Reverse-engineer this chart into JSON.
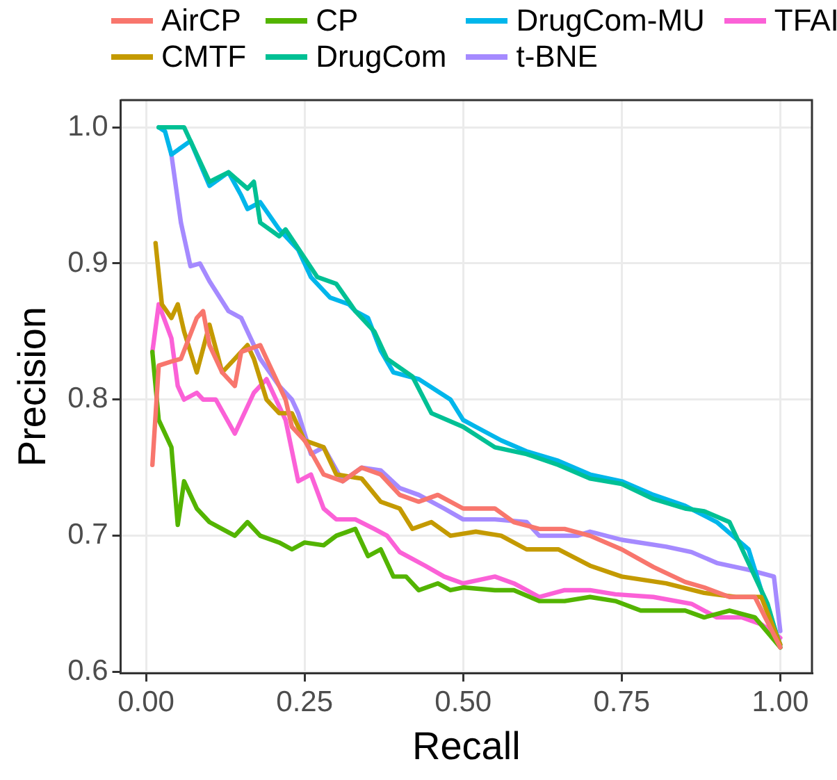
{
  "chart_data": {
    "type": "line",
    "xlabel": "Recall",
    "ylabel": "Precision",
    "xlim": [
      -0.04,
      1.05
    ],
    "ylim": [
      0.599,
      1.02
    ],
    "xticks": [
      {
        "value": 0,
        "label": "0.00"
      },
      {
        "value": 0.25,
        "label": "0.25"
      },
      {
        "value": 0.5,
        "label": "0.50"
      },
      {
        "value": 0.75,
        "label": "0.75"
      },
      {
        "value": 1,
        "label": "1.00"
      }
    ],
    "yticks": [
      {
        "value": 0.6,
        "label": "0.6"
      },
      {
        "value": 0.7,
        "label": "0.7"
      },
      {
        "value": 0.8,
        "label": "0.8"
      },
      {
        "value": 0.9,
        "label": "0.9"
      },
      {
        "value": 1,
        "label": "1.0"
      }
    ],
    "grid": true,
    "legend": "top",
    "marker": "none",
    "line_style": "solid",
    "series": [
      {
        "name": "AirCP",
        "color": "#f8766d",
        "x": [
          0.01,
          0.02,
          0.04,
          0.055,
          0.08,
          0.09,
          0.1,
          0.12,
          0.14,
          0.15,
          0.18,
          0.19,
          0.21,
          0.22,
          0.23,
          0.25,
          0.28,
          0.31,
          0.34,
          0.37,
          0.4,
          0.43,
          0.46,
          0.5,
          0.55,
          0.58,
          0.62,
          0.66,
          0.7,
          0.75,
          0.8,
          0.85,
          0.88,
          0.92,
          0.96,
          1.0
        ],
        "values": [
          0.752,
          0.825,
          0.828,
          0.83,
          0.86,
          0.865,
          0.84,
          0.82,
          0.81,
          0.835,
          0.84,
          0.83,
          0.81,
          0.8,
          0.78,
          0.77,
          0.745,
          0.74,
          0.75,
          0.745,
          0.73,
          0.725,
          0.73,
          0.72,
          0.72,
          0.71,
          0.705,
          0.705,
          0.7,
          0.69,
          0.677,
          0.666,
          0.662,
          0.655,
          0.655,
          0.618
        ]
      },
      {
        "name": "CMTF",
        "color": "#c49a00",
        "x": [
          0.015,
          0.025,
          0.04,
          0.05,
          0.06,
          0.08,
          0.1,
          0.12,
          0.14,
          0.16,
          0.17,
          0.19,
          0.21,
          0.23,
          0.25,
          0.28,
          0.3,
          0.34,
          0.37,
          0.4,
          0.42,
          0.45,
          0.48,
          0.52,
          0.56,
          0.6,
          0.65,
          0.7,
          0.75,
          0.82,
          0.88,
          0.93,
          0.97,
          1.0
        ],
        "values": [
          0.915,
          0.87,
          0.86,
          0.87,
          0.85,
          0.82,
          0.855,
          0.82,
          0.83,
          0.84,
          0.83,
          0.8,
          0.79,
          0.79,
          0.77,
          0.765,
          0.745,
          0.742,
          0.725,
          0.72,
          0.705,
          0.71,
          0.7,
          0.703,
          0.7,
          0.69,
          0.69,
          0.678,
          0.67,
          0.665,
          0.658,
          0.655,
          0.655,
          0.62
        ]
      },
      {
        "name": "CP",
        "color": "#53b400",
        "x": [
          0.01,
          0.02,
          0.04,
          0.05,
          0.06,
          0.08,
          0.1,
          0.12,
          0.14,
          0.16,
          0.18,
          0.21,
          0.23,
          0.25,
          0.28,
          0.3,
          0.33,
          0.35,
          0.37,
          0.39,
          0.41,
          0.43,
          0.46,
          0.48,
          0.5,
          0.55,
          0.58,
          0.62,
          0.66,
          0.7,
          0.74,
          0.78,
          0.85,
          0.88,
          0.92,
          0.96,
          1.0
        ],
        "values": [
          0.835,
          0.785,
          0.765,
          0.708,
          0.74,
          0.72,
          0.71,
          0.705,
          0.7,
          0.71,
          0.7,
          0.695,
          0.69,
          0.695,
          0.693,
          0.7,
          0.705,
          0.685,
          0.69,
          0.67,
          0.67,
          0.66,
          0.665,
          0.66,
          0.662,
          0.66,
          0.66,
          0.652,
          0.652,
          0.655,
          0.652,
          0.645,
          0.645,
          0.64,
          0.645,
          0.64,
          0.618
        ]
      },
      {
        "name": "DrugCom",
        "color": "#00c094",
        "x": [
          0.02,
          0.06,
          0.07,
          0.1,
          0.13,
          0.16,
          0.17,
          0.18,
          0.21,
          0.22,
          0.27,
          0.3,
          0.33,
          0.36,
          0.38,
          0.42,
          0.45,
          0.5,
          0.55,
          0.6,
          0.65,
          0.7,
          0.75,
          0.8,
          0.85,
          0.88,
          0.92,
          0.95,
          0.98,
          1.0
        ],
        "values": [
          1.0,
          1.0,
          0.99,
          0.96,
          0.967,
          0.955,
          0.96,
          0.93,
          0.92,
          0.925,
          0.89,
          0.885,
          0.865,
          0.85,
          0.83,
          0.817,
          0.79,
          0.78,
          0.765,
          0.76,
          0.752,
          0.742,
          0.738,
          0.727,
          0.72,
          0.718,
          0.71,
          0.68,
          0.65,
          0.618
        ]
      },
      {
        "name": "DrugCom-MU",
        "color": "#00b6eb",
        "x": [
          0.02,
          0.03,
          0.04,
          0.07,
          0.1,
          0.13,
          0.15,
          0.16,
          0.18,
          0.21,
          0.24,
          0.26,
          0.29,
          0.32,
          0.33,
          0.35,
          0.37,
          0.39,
          0.43,
          0.48,
          0.5,
          0.52,
          0.56,
          0.6,
          0.65,
          0.7,
          0.75,
          0.8,
          0.85,
          0.9,
          0.95,
          0.97,
          1.0
        ],
        "values": [
          1.0,
          0.997,
          0.98,
          0.99,
          0.957,
          0.967,
          0.95,
          0.94,
          0.945,
          0.925,
          0.91,
          0.89,
          0.875,
          0.87,
          0.865,
          0.86,
          0.836,
          0.82,
          0.815,
          0.8,
          0.785,
          0.78,
          0.77,
          0.762,
          0.755,
          0.745,
          0.74,
          0.73,
          0.722,
          0.71,
          0.69,
          0.66,
          0.62
        ]
      },
      {
        "name": "t-BNE",
        "color": "#a58aff",
        "x": [
          0.04,
          0.055,
          0.07,
          0.085,
          0.1,
          0.13,
          0.15,
          0.17,
          0.18,
          0.21,
          0.23,
          0.24,
          0.26,
          0.28,
          0.31,
          0.34,
          0.37,
          0.4,
          0.43,
          0.47,
          0.5,
          0.55,
          0.6,
          0.62,
          0.68,
          0.7,
          0.75,
          0.82,
          0.86,
          0.9,
          0.95,
          0.99,
          1.0
        ],
        "values": [
          0.98,
          0.93,
          0.898,
          0.9,
          0.887,
          0.865,
          0.86,
          0.84,
          0.83,
          0.81,
          0.8,
          0.79,
          0.76,
          0.765,
          0.74,
          0.75,
          0.748,
          0.735,
          0.73,
          0.72,
          0.712,
          0.712,
          0.71,
          0.7,
          0.7,
          0.703,
          0.697,
          0.692,
          0.688,
          0.68,
          0.675,
          0.67,
          0.63
        ]
      },
      {
        "name": "TFAI",
        "color": "#fb61d7",
        "x": [
          0.01,
          0.02,
          0.04,
          0.05,
          0.06,
          0.08,
          0.09,
          0.11,
          0.14,
          0.17,
          0.19,
          0.22,
          0.24,
          0.26,
          0.28,
          0.3,
          0.33,
          0.36,
          0.38,
          0.4,
          0.44,
          0.47,
          0.5,
          0.55,
          0.58,
          0.62,
          0.66,
          0.7,
          0.74,
          0.8,
          0.86,
          0.9,
          0.94,
          0.97,
          1.0
        ],
        "values": [
          0.835,
          0.87,
          0.845,
          0.81,
          0.8,
          0.805,
          0.8,
          0.8,
          0.775,
          0.805,
          0.815,
          0.785,
          0.74,
          0.745,
          0.72,
          0.712,
          0.712,
          0.705,
          0.7,
          0.688,
          0.678,
          0.67,
          0.665,
          0.67,
          0.665,
          0.655,
          0.66,
          0.66,
          0.657,
          0.655,
          0.65,
          0.64,
          0.64,
          0.635,
          0.625
        ]
      }
    ]
  }
}
